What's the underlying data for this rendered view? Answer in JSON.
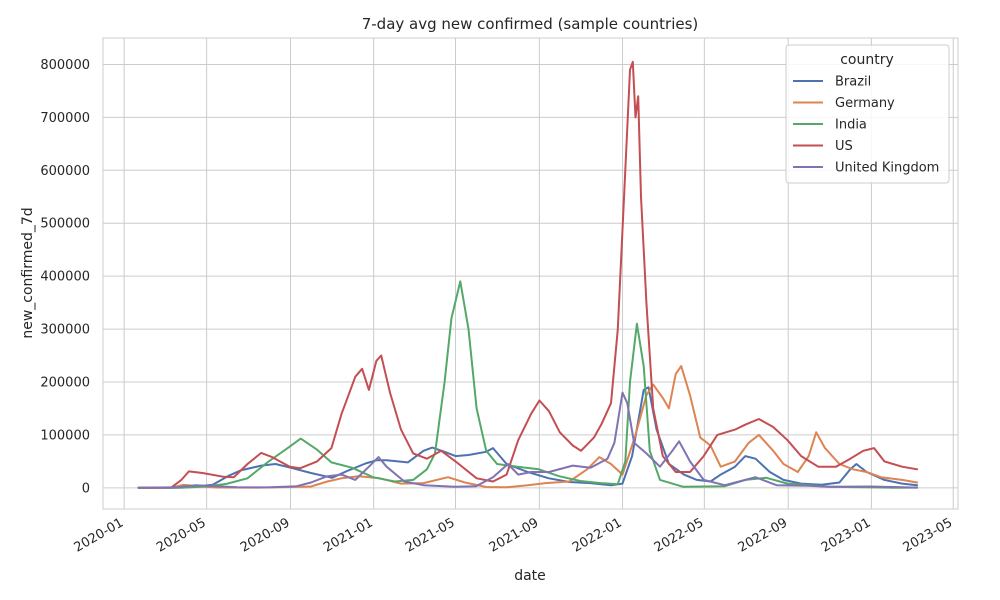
{
  "chart_data": {
    "type": "line",
    "title": "7-day avg new confirmed (sample countries)",
    "xlabel": "date",
    "ylabel": "new_confirmed_7d",
    "x_axis_type": "date",
    "xlim": [
      "2019-12-01",
      "2023-05-08"
    ],
    "ylim": [
      -40000,
      850000
    ],
    "x_ticks": [
      "2020-01",
      "2020-05",
      "2020-09",
      "2021-01",
      "2021-05",
      "2021-09",
      "2022-01",
      "2022-05",
      "2022-09",
      "2023-01",
      "2023-05"
    ],
    "y_ticks": [
      0,
      100000,
      200000,
      300000,
      400000,
      500000,
      600000,
      700000,
      800000
    ],
    "grid": true,
    "legend": {
      "title": "country",
      "placement": "top-right"
    },
    "series": [
      {
        "name": "Brazil",
        "color": "#4c72b0",
        "points": [
          [
            "2020-01-22",
            0
          ],
          [
            "2020-03-15",
            100
          ],
          [
            "2020-04-10",
            1500
          ],
          [
            "2020-05-10",
            6000
          ],
          [
            "2020-06-01",
            22000
          ],
          [
            "2020-06-20",
            33000
          ],
          [
            "2020-07-20",
            42000
          ],
          [
            "2020-08-10",
            45000
          ],
          [
            "2020-09-01",
            38000
          ],
          [
            "2020-10-01",
            28000
          ],
          [
            "2020-11-01",
            19000
          ],
          [
            "2020-11-25",
            33000
          ],
          [
            "2020-12-20",
            46000
          ],
          [
            "2021-01-05",
            52000
          ],
          [
            "2021-01-20",
            52000
          ],
          [
            "2021-02-20",
            48000
          ],
          [
            "2021-03-15",
            70000
          ],
          [
            "2021-03-28",
            76000
          ],
          [
            "2021-04-15",
            68000
          ],
          [
            "2021-05-01",
            60000
          ],
          [
            "2021-05-20",
            62000
          ],
          [
            "2021-06-15",
            68000
          ],
          [
            "2021-06-25",
            75000
          ],
          [
            "2021-07-15",
            45000
          ],
          [
            "2021-08-15",
            30000
          ],
          [
            "2021-09-15",
            18000
          ],
          [
            "2021-10-15",
            11000
          ],
          [
            "2021-11-15",
            9000
          ],
          [
            "2021-12-15",
            5000
          ],
          [
            "2022-01-01",
            8000
          ],
          [
            "2022-01-15",
            60000
          ],
          [
            "2022-02-01",
            185000
          ],
          [
            "2022-02-08",
            190000
          ],
          [
            "2022-02-20",
            110000
          ],
          [
            "2022-03-10",
            45000
          ],
          [
            "2022-04-01",
            25000
          ],
          [
            "2022-04-20",
            15000
          ],
          [
            "2022-05-10",
            12000
          ],
          [
            "2022-05-25",
            25000
          ],
          [
            "2022-06-15",
            40000
          ],
          [
            "2022-06-30",
            60000
          ],
          [
            "2022-07-15",
            55000
          ],
          [
            "2022-08-05",
            30000
          ],
          [
            "2022-08-25",
            15000
          ],
          [
            "2022-09-20",
            8000
          ],
          [
            "2022-10-20",
            6000
          ],
          [
            "2022-11-15",
            10000
          ],
          [
            "2022-12-01",
            35000
          ],
          [
            "2022-12-10",
            45000
          ],
          [
            "2022-12-25",
            30000
          ],
          [
            "2023-01-20",
            15000
          ],
          [
            "2023-02-15",
            8000
          ],
          [
            "2023-03-09",
            5000
          ]
        ]
      },
      {
        "name": "Germany",
        "color": "#dd8452",
        "points": [
          [
            "2020-01-22",
            0
          ],
          [
            "2020-03-10",
            500
          ],
          [
            "2020-03-28",
            5500
          ],
          [
            "2020-04-15",
            3500
          ],
          [
            "2020-05-15",
            600
          ],
          [
            "2020-07-15",
            400
          ],
          [
            "2020-09-01",
            1500
          ],
          [
            "2020-10-01",
            2500
          ],
          [
            "2020-10-25",
            12000
          ],
          [
            "2020-11-15",
            18000
          ],
          [
            "2020-12-10",
            22000
          ],
          [
            "2020-12-25",
            20000
          ],
          [
            "2021-01-10",
            18000
          ],
          [
            "2021-02-10",
            8000
          ],
          [
            "2021-03-15",
            9000
          ],
          [
            "2021-04-20",
            20000
          ],
          [
            "2021-05-15",
            10000
          ],
          [
            "2021-06-15",
            1500
          ],
          [
            "2021-07-15",
            1000
          ],
          [
            "2021-08-15",
            5000
          ],
          [
            "2021-09-10",
            9000
          ],
          [
            "2021-10-15",
            12000
          ],
          [
            "2021-11-10",
            35000
          ],
          [
            "2021-11-28",
            58000
          ],
          [
            "2021-12-15",
            45000
          ],
          [
            "2022-01-01",
            25000
          ],
          [
            "2022-01-20",
            100000
          ],
          [
            "2022-02-05",
            175000
          ],
          [
            "2022-02-15",
            195000
          ],
          [
            "2022-03-01",
            170000
          ],
          [
            "2022-03-10",
            150000
          ],
          [
            "2022-03-20",
            215000
          ],
          [
            "2022-03-28",
            230000
          ],
          [
            "2022-04-10",
            175000
          ],
          [
            "2022-04-25",
            95000
          ],
          [
            "2022-05-10",
            80000
          ],
          [
            "2022-05-25",
            40000
          ],
          [
            "2022-06-15",
            50000
          ],
          [
            "2022-07-05",
            85000
          ],
          [
            "2022-07-20",
            100000
          ],
          [
            "2022-08-10",
            70000
          ],
          [
            "2022-08-25",
            45000
          ],
          [
            "2022-09-15",
            30000
          ],
          [
            "2022-10-01",
            60000
          ],
          [
            "2022-10-12",
            105000
          ],
          [
            "2022-10-25",
            75000
          ],
          [
            "2022-11-15",
            45000
          ],
          [
            "2022-12-05",
            35000
          ],
          [
            "2022-12-25",
            30000
          ],
          [
            "2023-01-15",
            20000
          ],
          [
            "2023-02-15",
            15000
          ],
          [
            "2023-03-09",
            10000
          ]
        ]
      },
      {
        "name": "India",
        "color": "#55a868",
        "points": [
          [
            "2020-01-22",
            0
          ],
          [
            "2020-03-25",
            100
          ],
          [
            "2020-04-30",
            2500
          ],
          [
            "2020-05-30",
            7500
          ],
          [
            "2020-06-30",
            18000
          ],
          [
            "2020-07-31",
            50000
          ],
          [
            "2020-08-31",
            78000
          ],
          [
            "2020-09-16",
            93000
          ],
          [
            "2020-10-10",
            72000
          ],
          [
            "2020-10-31",
            48000
          ],
          [
            "2020-11-30",
            38000
          ],
          [
            "2020-12-31",
            20000
          ],
          [
            "2021-02-01",
            12000
          ],
          [
            "2021-02-28",
            15000
          ],
          [
            "2021-03-20",
            35000
          ],
          [
            "2021-04-01",
            65000
          ],
          [
            "2021-04-15",
            200000
          ],
          [
            "2021-04-25",
            320000
          ],
          [
            "2021-05-08",
            390000
          ],
          [
            "2021-05-20",
            300000
          ],
          [
            "2021-06-01",
            150000
          ],
          [
            "2021-06-15",
            70000
          ],
          [
            "2021-07-01",
            45000
          ],
          [
            "2021-07-31",
            40000
          ],
          [
            "2021-08-31",
            35000
          ],
          [
            "2021-09-30",
            22000
          ],
          [
            "2021-10-31",
            13000
          ],
          [
            "2021-11-30",
            9000
          ],
          [
            "2021-12-25",
            7000
          ],
          [
            "2022-01-05",
            50000
          ],
          [
            "2022-01-12",
            200000
          ],
          [
            "2022-01-22",
            310000
          ],
          [
            "2022-02-01",
            230000
          ],
          [
            "2022-02-10",
            70000
          ],
          [
            "2022-02-25",
            15000
          ],
          [
            "2022-03-31",
            2000
          ],
          [
            "2022-05-31",
            3000
          ],
          [
            "2022-06-30",
            15000
          ],
          [
            "2022-07-31",
            19000
          ],
          [
            "2022-08-31",
            8000
          ],
          [
            "2022-10-31",
            2000
          ],
          [
            "2023-01-31",
            200
          ],
          [
            "2023-03-09",
            500
          ]
        ]
      },
      {
        "name": "US",
        "color": "#c44e52",
        "points": [
          [
            "2020-01-22",
            0
          ],
          [
            "2020-03-10",
            500
          ],
          [
            "2020-03-25",
            15000
          ],
          [
            "2020-04-05",
            31000
          ],
          [
            "2020-04-25",
            28000
          ],
          [
            "2020-05-25",
            21000
          ],
          [
            "2020-06-10",
            20000
          ],
          [
            "2020-06-30",
            45000
          ],
          [
            "2020-07-20",
            66000
          ],
          [
            "2020-08-05",
            58000
          ],
          [
            "2020-08-31",
            40000
          ],
          [
            "2020-09-15",
            37000
          ],
          [
            "2020-10-10",
            50000
          ],
          [
            "2020-10-31",
            75000
          ],
          [
            "2020-11-15",
            140000
          ],
          [
            "2020-11-25",
            175000
          ],
          [
            "2020-12-05",
            210000
          ],
          [
            "2020-12-15",
            225000
          ],
          [
            "2020-12-25",
            185000
          ],
          [
            "2021-01-05",
            240000
          ],
          [
            "2021-01-12",
            250000
          ],
          [
            "2021-01-25",
            180000
          ],
          [
            "2021-02-10",
            110000
          ],
          [
            "2021-02-28",
            65000
          ],
          [
            "2021-03-20",
            55000
          ],
          [
            "2021-04-10",
            70000
          ],
          [
            "2021-05-01",
            50000
          ],
          [
            "2021-06-01",
            18000
          ],
          [
            "2021-06-25",
            12000
          ],
          [
            "2021-07-15",
            25000
          ],
          [
            "2021-08-01",
            90000
          ],
          [
            "2021-08-20",
            140000
          ],
          [
            "2021-09-01",
            165000
          ],
          [
            "2021-09-15",
            145000
          ],
          [
            "2021-10-01",
            105000
          ],
          [
            "2021-10-20",
            80000
          ],
          [
            "2021-11-01",
            70000
          ],
          [
            "2021-11-20",
            95000
          ],
          [
            "2021-12-01",
            120000
          ],
          [
            "2021-12-15",
            160000
          ],
          [
            "2021-12-25",
            300000
          ],
          [
            "2022-01-05",
            600000
          ],
          [
            "2022-01-12",
            790000
          ],
          [
            "2022-01-16",
            805000
          ],
          [
            "2022-01-20",
            700000
          ],
          [
            "2022-01-24",
            740000
          ],
          [
            "2022-01-28",
            550000
          ],
          [
            "2022-02-05",
            350000
          ],
          [
            "2022-02-15",
            150000
          ],
          [
            "2022-03-01",
            60000
          ],
          [
            "2022-03-20",
            30000
          ],
          [
            "2022-04-10",
            30000
          ],
          [
            "2022-04-30",
            60000
          ],
          [
            "2022-05-20",
            100000
          ],
          [
            "2022-06-15",
            110000
          ],
          [
            "2022-07-01",
            120000
          ],
          [
            "2022-07-20",
            130000
          ],
          [
            "2022-08-10",
            115000
          ],
          [
            "2022-08-31",
            90000
          ],
          [
            "2022-09-20",
            60000
          ],
          [
            "2022-10-15",
            40000
          ],
          [
            "2022-11-10",
            40000
          ],
          [
            "2022-12-01",
            55000
          ],
          [
            "2022-12-20",
            70000
          ],
          [
            "2023-01-05",
            75000
          ],
          [
            "2023-01-20",
            50000
          ],
          [
            "2023-02-15",
            40000
          ],
          [
            "2023-03-09",
            35000
          ]
        ]
      },
      {
        "name": "United Kingdom",
        "color": "#8172b3",
        "points": [
          [
            "2020-01-22",
            0
          ],
          [
            "2020-03-20",
            1000
          ],
          [
            "2020-04-15",
            5000
          ],
          [
            "2020-05-15",
            3000
          ],
          [
            "2020-06-15",
            1000
          ],
          [
            "2020-07-31",
            800
          ],
          [
            "2020-09-10",
            3000
          ],
          [
            "2020-10-01",
            10000
          ],
          [
            "2020-10-25",
            22000
          ],
          [
            "2020-11-15",
            25000
          ],
          [
            "2020-12-05",
            15000
          ],
          [
            "2020-12-25",
            40000
          ],
          [
            "2021-01-08",
            58000
          ],
          [
            "2021-01-20",
            40000
          ],
          [
            "2021-02-15",
            12000
          ],
          [
            "2021-03-15",
            5000
          ],
          [
            "2021-04-30",
            2000
          ],
          [
            "2021-05-31",
            3000
          ],
          [
            "2021-06-25",
            20000
          ],
          [
            "2021-07-17",
            45000
          ],
          [
            "2021-08-01",
            25000
          ],
          [
            "2021-08-20",
            30000
          ],
          [
            "2021-09-15",
            30000
          ],
          [
            "2021-10-20",
            42000
          ],
          [
            "2021-11-15",
            38000
          ],
          [
            "2021-12-10",
            55000
          ],
          [
            "2021-12-20",
            85000
          ],
          [
            "2022-01-01",
            180000
          ],
          [
            "2022-01-08",
            160000
          ],
          [
            "2022-01-18",
            85000
          ],
          [
            "2022-02-05",
            65000
          ],
          [
            "2022-02-25",
            40000
          ],
          [
            "2022-03-15",
            70000
          ],
          [
            "2022-03-25",
            88000
          ],
          [
            "2022-04-10",
            50000
          ],
          [
            "2022-04-30",
            15000
          ],
          [
            "2022-05-31",
            5000
          ],
          [
            "2022-06-30",
            15000
          ],
          [
            "2022-07-15",
            20000
          ],
          [
            "2022-08-15",
            5000
          ],
          [
            "2022-09-30",
            4000
          ],
          [
            "2022-10-31",
            2000
          ],
          [
            "2022-12-31",
            2500
          ],
          [
            "2023-03-09",
            500
          ]
        ]
      }
    ]
  }
}
